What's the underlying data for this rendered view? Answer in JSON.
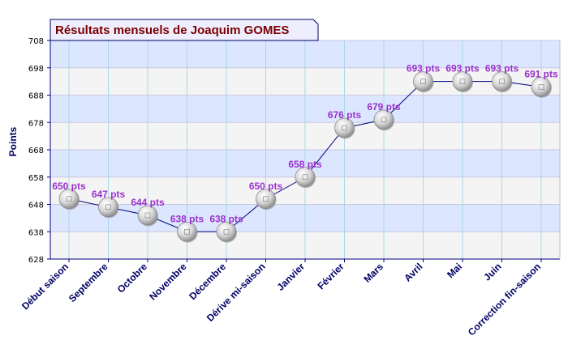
{
  "chart_data": {
    "type": "line",
    "title": "Résultats mensuels de Joaquim GOMES",
    "ylabel": "Points",
    "xlabel": "",
    "ylim": [
      628,
      708
    ],
    "yticks": [
      628,
      638,
      648,
      658,
      668,
      678,
      688,
      698,
      708
    ],
    "categories": [
      "Début saison",
      "Septembre",
      "Octobre",
      "Novembre",
      "Décembre",
      "Dérive mi-saison",
      "Janvier",
      "Février",
      "Mars",
      "Avril",
      "Mai",
      "Juin",
      "Correction fin-saison"
    ],
    "values": [
      650,
      647,
      644,
      638,
      638,
      650,
      658,
      676,
      679,
      693,
      693,
      693,
      691
    ],
    "data_labels": [
      "650 pts",
      "647 pts",
      "644 pts",
      "638 pts",
      "638 pts",
      "650 pts",
      "658 pts",
      "676 pts",
      "679 pts",
      "693 pts",
      "693 pts",
      "693 pts",
      "691 pts"
    ],
    "grid": true,
    "colors": {
      "line": "#000080",
      "band_light": "#dde6ff",
      "band_alt": "#f4f4f4",
      "label": "#9933cc",
      "title": "#7a0000"
    }
  }
}
